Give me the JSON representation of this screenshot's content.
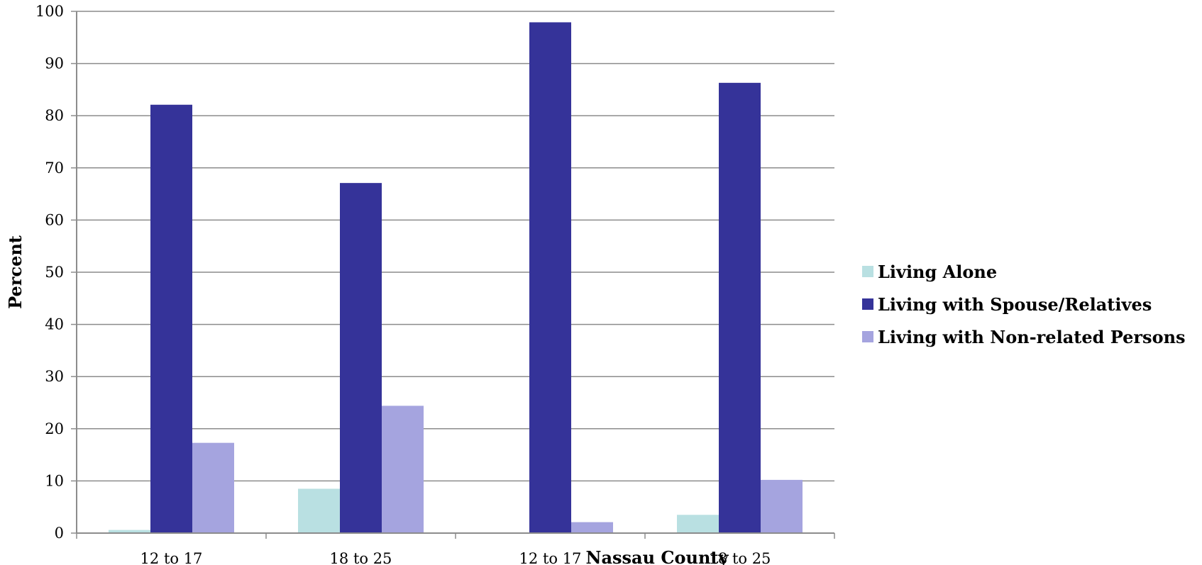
{
  "chart_data": {
    "type": "bar",
    "title": "",
    "xlabel": "Nassau County",
    "ylabel": "Percent",
    "ylim": [
      0,
      100
    ],
    "y_ticks": [
      0,
      10,
      20,
      30,
      40,
      50,
      60,
      70,
      80,
      90,
      100
    ],
    "grid": true,
    "legend_position": "right",
    "categories": [
      "12 to 17",
      "18 to 25",
      "12 to 17",
      "18 to 25"
    ],
    "series": [
      {
        "name": "Living Alone",
        "color": "#b9e0e2",
        "values": [
          0.6,
          8.5,
          0,
          3.5
        ]
      },
      {
        "name": "Living with Spouse/Relatives",
        "color": "#353399",
        "values": [
          82.1,
          67.1,
          97.9,
          86.3
        ]
      },
      {
        "name": "Living with Non-related Persons",
        "color": "#a5a4df",
        "values": [
          17.3,
          24.4,
          2.1,
          10.2
        ]
      }
    ]
  }
}
